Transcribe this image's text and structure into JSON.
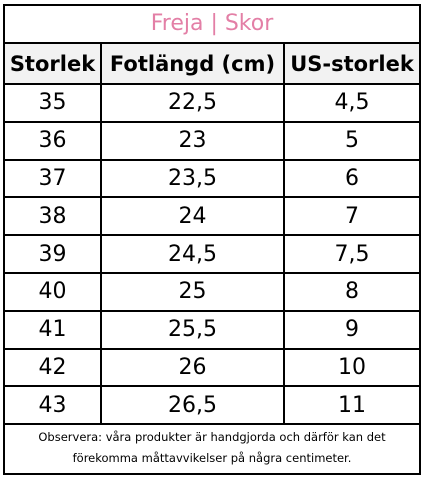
{
  "title": "Freja | Skor",
  "headers": [
    "Storlek",
    "Fotlängd (cm)",
    "US-storlek"
  ],
  "rows": [
    [
      "35",
      "22,5",
      "4,5"
    ],
    [
      "36",
      "23",
      "5"
    ],
    [
      "37",
      "23,5",
      "6"
    ],
    [
      "38",
      "24",
      "7"
    ],
    [
      "39",
      "24,5",
      "7,5"
    ],
    [
      "40",
      "25",
      "8"
    ],
    [
      "41",
      "25,5",
      "9"
    ],
    [
      "42",
      "26",
      "10"
    ],
    [
      "43",
      "26,5",
      "11"
    ]
  ],
  "note": {
    "line1": "Observera: våra produkter är handgjorda och därför kan det",
    "line2": "förekomma måttavvikelser på några centimeter."
  },
  "colors": {
    "title": "#e37fa6",
    "border": "#000000",
    "header_bg": "#f2f2f2"
  }
}
